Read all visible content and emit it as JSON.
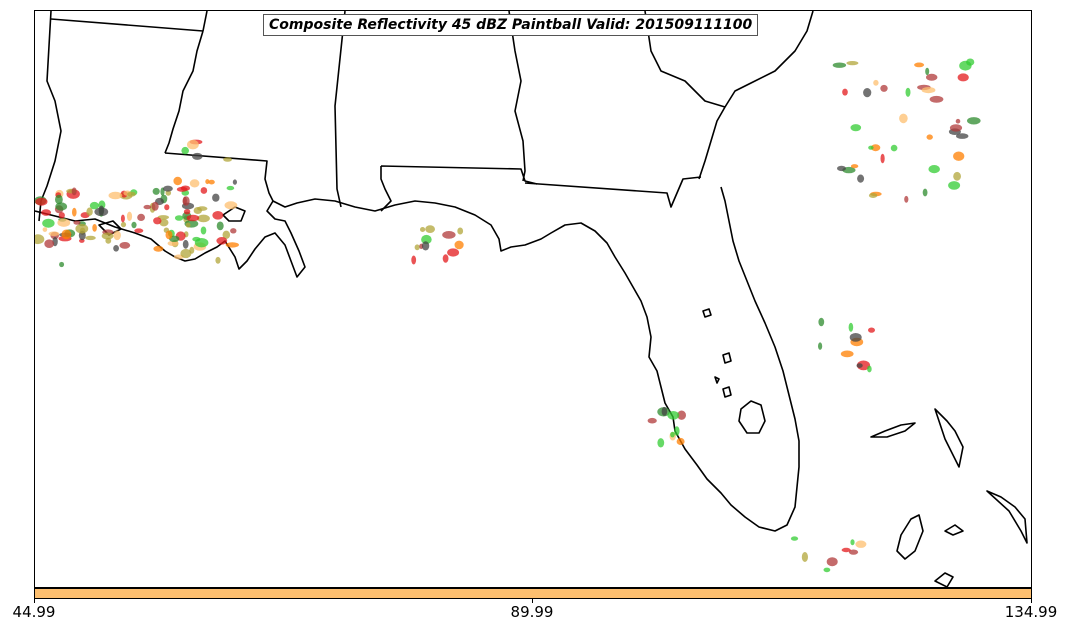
{
  "title": "Composite Reflectivity 45 dBZ Paintball Valid: 201509111100",
  "colorbar": {
    "color": "#fdbf6f",
    "ticks": [
      "44.99",
      "89.99",
      "134.99"
    ]
  },
  "paintball_colors": [
    "#e31a1c",
    "#33cc33",
    "#ff7f00",
    "#b2a63a",
    "#444444",
    "#fdbf6f",
    "#2e8b2e",
    "#b03a3a"
  ]
}
